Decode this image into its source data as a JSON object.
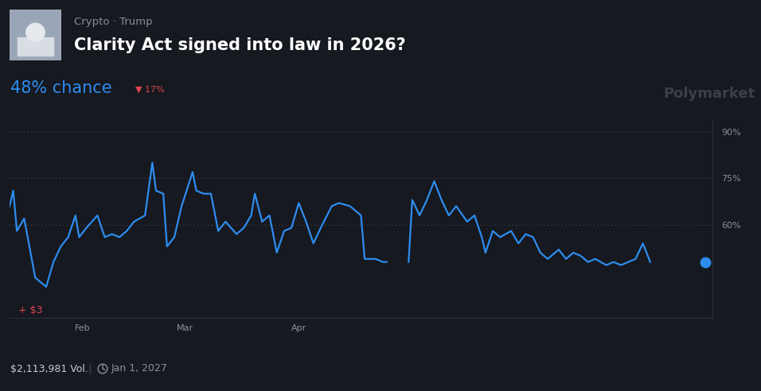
{
  "chart_data": {
    "type": "line",
    "title": "Clarity Act signed into law in 2026?",
    "subtitle": "Crypto · Trump",
    "annotations": [
      "48% chance",
      "▼ 17%",
      "Polymarket",
      "+ $3",
      "$2,113,981 Vol.",
      "Jan 1, 2027"
    ],
    "x": [
      12,
      13,
      14,
      16,
      19,
      22,
      24,
      26,
      28,
      30,
      31,
      33,
      36,
      38,
      40,
      42,
      44,
      46,
      49,
      51,
      52,
      54,
      55,
      57,
      59,
      62,
      63,
      65,
      67,
      69,
      71,
      74,
      76,
      78,
      79,
      81,
      83,
      85,
      87,
      89,
      91,
      93,
      95,
      97,
      100,
      102,
      105,
      108,
      109,
      112,
      114,
      115,
      118,
      121,
      122,
      124,
      126,
      128,
      130,
      132,
      134,
      137,
      139,
      141,
      142,
      144,
      146,
      149,
      151,
      153,
      155,
      157,
      159,
      162,
      164,
      166,
      168,
      170,
      172,
      175,
      177,
      179,
      181,
      183,
      185,
      187,
      194,
      202
    ],
    "values": [
      66,
      71,
      58,
      62,
      43,
      40,
      48,
      53,
      56,
      63,
      56,
      59,
      63,
      56,
      57,
      56,
      58,
      61,
      63,
      80,
      71,
      70,
      53,
      56,
      66,
      77,
      71,
      70,
      70,
      58,
      61,
      57,
      59,
      63,
      70,
      61,
      63,
      51,
      58,
      59,
      67,
      61,
      54,
      59,
      66,
      67,
      66,
      63,
      49,
      49,
      48,
      48,
      null,
      48,
      68,
      63,
      68,
      74,
      68,
      63,
      66,
      61,
      63,
      56,
      51,
      58,
      56,
      58,
      54,
      57,
      56,
      51,
      49,
      52,
      49,
      51,
      50,
      48,
      49,
      47,
      48,
      47,
      48,
      49,
      54,
      48,
      null,
      48
    ],
    "color": "#2d8cf0",
    "xlim": [
      12,
      204
    ],
    "xticks": [
      {
        "value": 32,
        "label": "Feb"
      },
      {
        "value": 60,
        "label": "Mar"
      },
      {
        "value": 91,
        "label": "Apr"
      }
    ],
    "ylim": [
      30,
      94
    ],
    "yticks": [
      {
        "value": 60,
        "label": "60%"
      },
      {
        "value": 75,
        "label": "75%"
      },
      {
        "value": 90,
        "label": "90%"
      }
    ],
    "grid": true
  }
}
